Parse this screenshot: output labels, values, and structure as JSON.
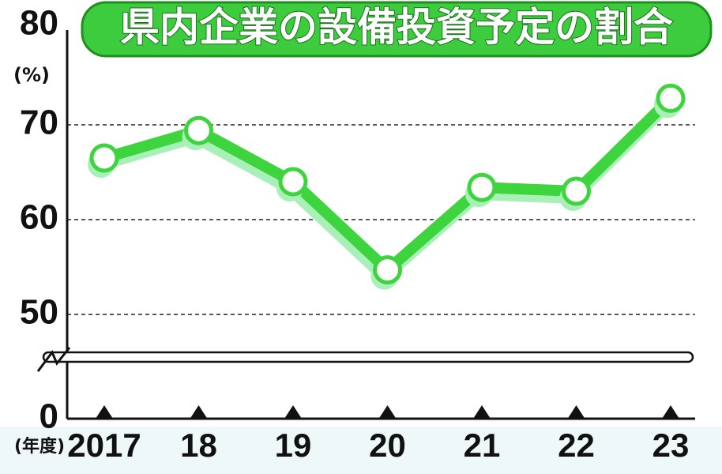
{
  "chart_data": {
    "type": "line",
    "title": "県内企業の設備投資予定の割合",
    "y_unit": "(%)",
    "x_unit": "(年度)",
    "categories": [
      "2017",
      "18",
      "19",
      "20",
      "21",
      "22",
      "23"
    ],
    "series": [
      {
        "name": "設備投資予定の割合",
        "color": "#3dd43d",
        "values": [
          66.5,
          69.4,
          64.0,
          54.7,
          63.4,
          63.0,
          72.8
        ]
      }
    ],
    "ylim": [
      0,
      80
    ],
    "yticks": [
      0,
      50,
      60,
      70,
      80
    ],
    "axis_break": true,
    "grid": true,
    "legend": false
  }
}
